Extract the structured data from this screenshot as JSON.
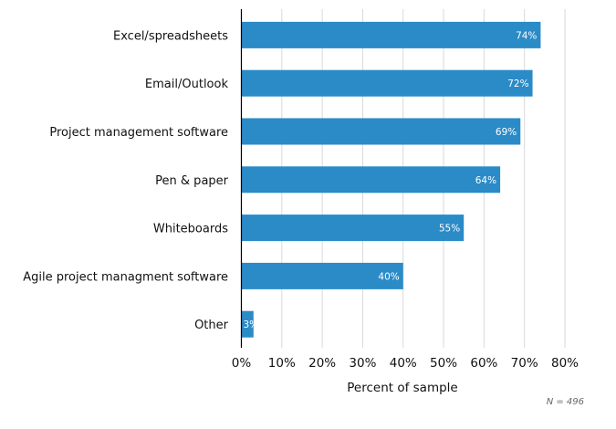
{
  "chart_data": {
    "type": "bar",
    "orientation": "horizontal",
    "categories": [
      "Excel/spreadsheets",
      "Email/Outlook",
      "Project management software",
      "Pen & paper",
      "Whiteboards",
      "Agile project managment software",
      "Other"
    ],
    "values": [
      74,
      72,
      69,
      64,
      55,
      40,
      3
    ],
    "data_labels": [
      "74%",
      "72%",
      "69%",
      "64%",
      "55%",
      "40%",
      "3%"
    ],
    "xlabel": "Percent of sample",
    "ylabel": "",
    "xlim": [
      0,
      80
    ],
    "ticks": [
      0,
      10,
      20,
      30,
      40,
      50,
      60,
      70,
      80
    ],
    "tick_labels": [
      "0%",
      "10%",
      "20%",
      "30%",
      "40%",
      "50%",
      "60%",
      "70%",
      "80%"
    ],
    "grid": true,
    "note": "N = 496",
    "bar_color": "#2a8bc7"
  }
}
